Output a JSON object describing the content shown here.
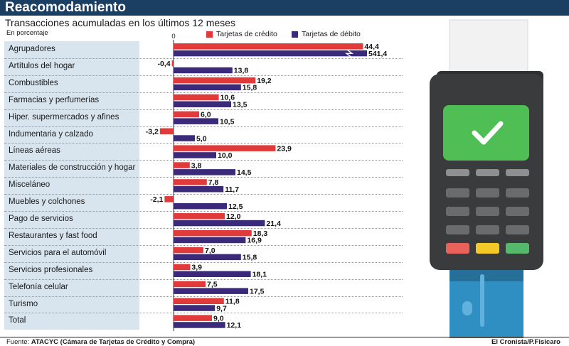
{
  "header": {
    "title": "Reacomodamiento",
    "subtitle": "Transacciones acumuladas en los últimos 12 meses",
    "unit": "En porcentaje"
  },
  "chart_data": {
    "type": "bar",
    "orientation": "horizontal",
    "axis_zero_label": "0",
    "categories": [
      "Agrupadores",
      "Artítulos del hogar",
      "Combustibles",
      "Farmacias y perfumerías",
      "Hiper. supermercados y afines",
      "Indumentaria y calzado",
      "Líneas aéreas",
      "Materiales de construcción y hogar",
      "Misceláneo",
      "Muebles y colchones",
      "Pago de servicios",
      "Restaurantes y fast food",
      "Servicios para el automóvil",
      "Servicios profesionales",
      "Telefonía celular",
      "Turismo",
      "Total"
    ],
    "series": [
      {
        "name": "Tarjetas de crédito",
        "color": "#e03a3a",
        "values": [
          44.4,
          -0.4,
          19.2,
          10.6,
          6.0,
          -3.2,
          23.9,
          3.8,
          7.8,
          -2.1,
          12.0,
          18.3,
          7.0,
          3.9,
          7.5,
          11.8,
          9.0
        ],
        "labels": [
          "44,4",
          "-0,4",
          "19,2",
          "10,6",
          "6,0",
          "-3,2",
          "23,9",
          "3,8",
          "7,8",
          "-2,1",
          "12,0",
          "18,3",
          "7,0",
          "3,9",
          "7,5",
          "11,8",
          "9,0"
        ]
      },
      {
        "name": "Tarjetas de débito",
        "color": "#3b2a7a",
        "values": [
          541.4,
          13.8,
          15.8,
          13.5,
          10.5,
          5.0,
          10.0,
          14.5,
          11.7,
          12.5,
          21.4,
          16.9,
          15.8,
          18.1,
          17.5,
          9.7,
          12.1
        ],
        "labels": [
          "541,4",
          "13,8",
          "15,8",
          "13,5",
          "10,5",
          "5,0",
          "10,0",
          "14,5",
          "11,7",
          "12,5",
          "21,4",
          "16,9",
          "15,8",
          "18,1",
          "17,5",
          "9,7",
          "12,1"
        ]
      }
    ],
    "broken_bar": {
      "category": "Agrupadores",
      "series": "Tarjetas de débito"
    }
  },
  "footer": {
    "source_label": "Fuente:",
    "source_text": "ATACYC (Cámara de Tarjetas de Crédito y Compra)",
    "credit": "El Cronista/P.Fisicaro"
  },
  "illustration": {
    "screen_color": "#4fbf55",
    "button_colors": [
      "#e8615a",
      "#f3c928",
      "#56b86a"
    ]
  }
}
